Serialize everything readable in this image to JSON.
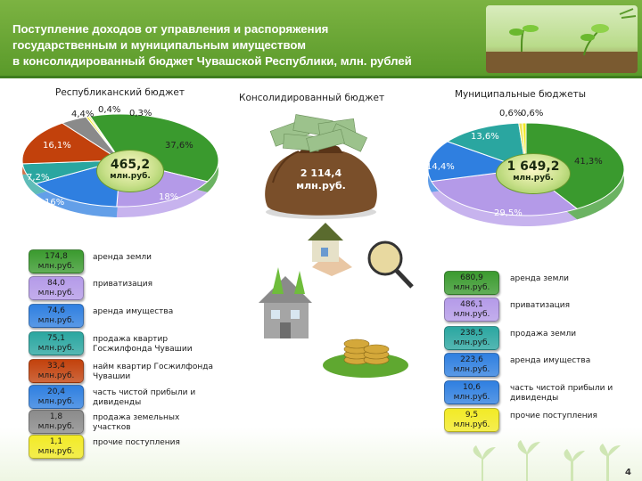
{
  "title_lines": [
    "Поступление доходов от управления и распоряжения",
    "государственным и муниципальным имуществом",
    "в консолидированный бюджет Чувашской Республики, млн. рублей"
  ],
  "page_number": "4",
  "chart_data": [
    {
      "type": "pie",
      "title": "Республиканский бюджет",
      "center_value": "465,2",
      "center_unit": "млн.руб.",
      "slices": [
        {
          "label": "37,6%",
          "value": 37.6,
          "color": "#3a9a2e"
        },
        {
          "label": "18%",
          "value": 18.0,
          "color": "#b49ae8"
        },
        {
          "label": "16%",
          "value": 16.0,
          "color": "#2f7fe0"
        },
        {
          "label": "7,2%",
          "value": 7.2,
          "color": "#2aa6a0"
        },
        {
          "label": "16,1%",
          "value": 16.1,
          "color": "#c2410c"
        },
        {
          "label": "4,4%",
          "value": 4.4,
          "color": "#8a8a8a"
        },
        {
          "label": "0,4%",
          "value": 0.4,
          "color": "#f2ea25"
        },
        {
          "label": "0,3%",
          "value": 0.3,
          "color": "#efe35a"
        }
      ]
    },
    {
      "type": "pie",
      "title": "Муниципальные бюджеты",
      "center_value": "1 649,2",
      "center_unit": "млн.руб.",
      "slices": [
        {
          "label": "41,3%",
          "value": 41.3,
          "color": "#3a9a2e"
        },
        {
          "label": "29,5%",
          "value": 29.5,
          "color": "#b49ae8"
        },
        {
          "label": "14,4%",
          "value": 14.4,
          "color": "#2f7fe0"
        },
        {
          "label": "13,6%",
          "value": 13.6,
          "color": "#2aa6a0"
        },
        {
          "label": "0,6%",
          "value": 0.6,
          "color": "#efe35a"
        },
        {
          "label": "0,6%",
          "value": 0.6,
          "color": "#f2ea25"
        }
      ]
    }
  ],
  "consolidated": {
    "title": "Консолидированный бюджет",
    "value": "2 114,4",
    "unit": "млн.руб."
  },
  "colors": {
    "green": "#3a9a2e",
    "lilac": "#b49ae8",
    "blue": "#2f7fe0",
    "teal": "#2aa6a0",
    "rust": "#c2410c",
    "gray": "#8a8a8a",
    "yellow": "#f2ea25",
    "lightyellow": "#efe35a"
  },
  "republican_items": [
    {
      "value": "174,8",
      "unit": "млн.руб.",
      "text": "аренда земли",
      "color": "#3a9a2e"
    },
    {
      "value": "84,0",
      "unit": "млн.руб.",
      "text": "приватизация",
      "color": "#b49ae8"
    },
    {
      "value": "74,6",
      "unit": "млн.руб.",
      "text": "аренда имущества",
      "color": "#2f7fe0"
    },
    {
      "value": "75,1",
      "unit": "млн.руб.",
      "text": "продажа квартир Госжилфонда Чувашии",
      "color": "#2aa6a0"
    },
    {
      "value": "33,4",
      "unit": "млн.руб.",
      "text": "найм квартир Госжилфонда Чувашии",
      "color": "#c2410c"
    },
    {
      "value": "20,4",
      "unit": "млн.руб.",
      "text": "часть чистой прибыли и дивиденды",
      "color": "#2f7fe0"
    },
    {
      "value": "1,8",
      "unit": "млн.руб.",
      "text": "продажа земельных участков",
      "color": "#8a8a8a"
    },
    {
      "value": "1,1",
      "unit": "млн.руб.",
      "text": "прочие поступления",
      "color": "#f2ea25"
    }
  ],
  "municipal_items": [
    {
      "value": "680,9",
      "unit": "млн.руб.",
      "text": "аренда земли",
      "color": "#3a9a2e"
    },
    {
      "value": "486,1",
      "unit": "млн.руб.",
      "text": "приватизация",
      "color": "#b49ae8"
    },
    {
      "value": "238,5",
      "unit": "млн.руб.",
      "text": "продажа земли",
      "color": "#2aa6a0"
    },
    {
      "value": "223,6",
      "unit": "млн.руб.",
      "text": "аренда имущества",
      "color": "#2f7fe0"
    },
    {
      "value": "10,6",
      "unit": "млн.руб.",
      "text": "часть чистой прибыли и дивиденды",
      "color": "#2f7fe0"
    },
    {
      "value": "9,5",
      "unit": "млн.руб.",
      "text": "прочие поступления",
      "color": "#f2ea25"
    }
  ]
}
